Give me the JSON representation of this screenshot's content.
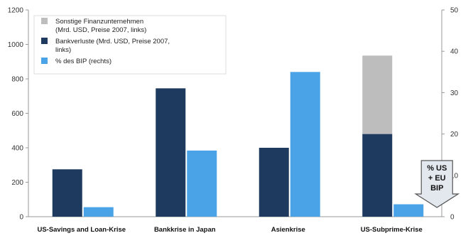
{
  "chart_data": {
    "type": "bar",
    "categories": [
      "US-Savings and Loan-Krise",
      "Bankkrise in Japan",
      "Asienkrise",
      "US-Subprime-Krise"
    ],
    "stacked_left_axis": true,
    "series": [
      {
        "name": "Bankverluste (Mrd. USD, Preise 2007, links)",
        "axis": "left",
        "color": "#1f3a5f",
        "values": [
          275,
          745,
          400,
          480
        ]
      },
      {
        "name": "Sonstige Finanzunternehmen (Mrd. USD, Preise 2007, links)",
        "axis": "left",
        "color": "#bdbdbd",
        "stack_on": "Bankverluste (Mrd. USD, Preise 2007, links)",
        "values": [
          0,
          0,
          0,
          455
        ]
      },
      {
        "name": "% des BIP (rechts)",
        "axis": "right",
        "color": "#4aa3e6",
        "values": [
          2.3,
          16,
          35,
          3
        ]
      }
    ],
    "legend_lines": [
      {
        "color": "#bdbdbd",
        "lines": [
          "Sonstige Finanzunternehmen",
          "(Mrd. USD, Preise 2007, links)"
        ]
      },
      {
        "color": "#1f3a5f",
        "lines": [
          "Bankverluste (Mrd. USD, Preise 2007,",
          "links)"
        ]
      },
      {
        "color": "#4aa3e6",
        "lines": [
          "% des BIP (rechts)"
        ]
      }
    ],
    "ylim_left": [
      0,
      1200
    ],
    "yticks_left": [
      0,
      200,
      400,
      600,
      800,
      1000,
      1200
    ],
    "ylim_right": [
      0,
      50
    ],
    "yticks_right": [
      0,
      10,
      20,
      30,
      40,
      50
    ],
    "legend_position": "top-left",
    "annotation": {
      "lines": [
        "% US",
        "+ EU",
        "BIP"
      ],
      "shape": "down-arrow",
      "target_category": "US-Subprime-Krise"
    },
    "grid": false,
    "title": "",
    "xlabel": "",
    "ylabel": ""
  }
}
